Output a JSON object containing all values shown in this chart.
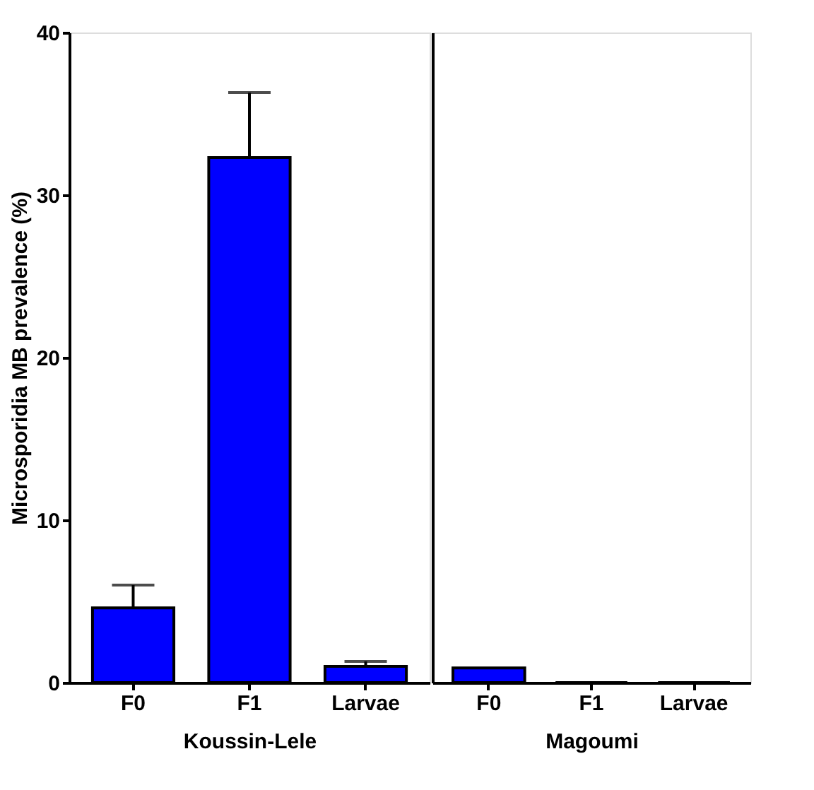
{
  "chart_data": [
    {
      "type": "bar",
      "categories": [
        "F0",
        "F1",
        "Larvae"
      ],
      "values": [
        4.6,
        32.3,
        1.0
      ],
      "errors": [
        [
          4.6,
          6.0
        ],
        [
          32.3,
          36.3
        ],
        [
          1.0,
          1.3
        ]
      ],
      "color": "#0000ff",
      "xlabel": "Koussin-Lele",
      "ylabel": "Microsporidia MB prevalence (%)",
      "ylim": [
        0,
        40
      ],
      "yticks": [
        0,
        10,
        20,
        30,
        40
      ],
      "grid": false
    },
    {
      "type": "bar",
      "categories": [
        "F0",
        "F1",
        "Larvae"
      ],
      "values": [
        0.9,
        0,
        0
      ],
      "errors": [
        null,
        null,
        null
      ],
      "color": "#0000ff",
      "xlabel": "Magoumi",
      "ylim": [
        0,
        40
      ],
      "tick_labels": "x",
      "grid": false
    }
  ]
}
